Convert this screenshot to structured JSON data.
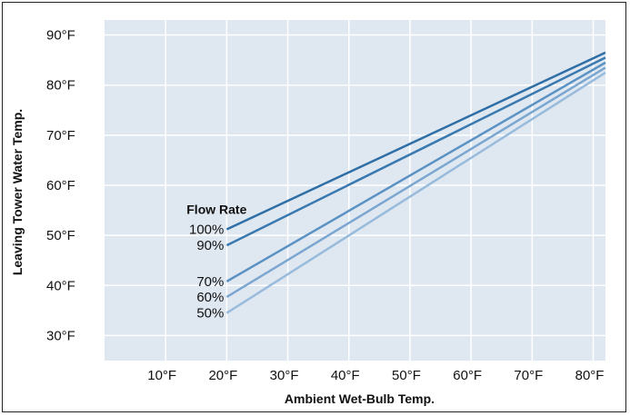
{
  "chart_data": {
    "type": "line",
    "title": "",
    "xlabel": "Ambient Wet-Bulb Temp.",
    "ylabel": "Leaving Tower Water Temp.",
    "xlim": [
      0,
      82
    ],
    "ylim": [
      25,
      93
    ],
    "x_ticks": [
      {
        "value": 10,
        "label": "10°F"
      },
      {
        "value": 20,
        "label": "20°F"
      },
      {
        "value": 30,
        "label": "30°F"
      },
      {
        "value": 40,
        "label": "40°F"
      },
      {
        "value": 50,
        "label": "50°F"
      },
      {
        "value": 60,
        "label": "60°F"
      },
      {
        "value": 70,
        "label": "70°F"
      },
      {
        "value": 80,
        "label": "80°F"
      }
    ],
    "y_ticks": [
      {
        "value": 30,
        "label": "30°F"
      },
      {
        "value": 40,
        "label": "40°F"
      },
      {
        "value": 50,
        "label": "50°F"
      },
      {
        "value": 60,
        "label": "60°F"
      },
      {
        "value": 70,
        "label": "70°F"
      },
      {
        "value": 80,
        "label": "80°F"
      },
      {
        "value": 90,
        "label": "90°F"
      }
    ],
    "grid": true,
    "legend_title": "Flow Rate",
    "series": [
      {
        "name": "100%",
        "color": "#2f6fa6",
        "x": [
          20,
          82
        ],
        "y": [
          51.2,
          86.5
        ]
      },
      {
        "name": "90%",
        "color": "#3a79b0",
        "x": [
          20,
          82
        ],
        "y": [
          48.0,
          85.5
        ]
      },
      {
        "name": "70%",
        "color": "#5b92c4",
        "x": [
          20,
          82
        ],
        "y": [
          40.8,
          84.5
        ]
      },
      {
        "name": "60%",
        "color": "#7aa6d0",
        "x": [
          20,
          82
        ],
        "y": [
          37.7,
          83.5
        ]
      },
      {
        "name": "50%",
        "color": "#98bbdc",
        "x": [
          20,
          82
        ],
        "y": [
          34.5,
          82.5
        ]
      }
    ],
    "colors": {
      "plot_bg": "#dfe7f1",
      "grid": "#ffffff"
    }
  }
}
